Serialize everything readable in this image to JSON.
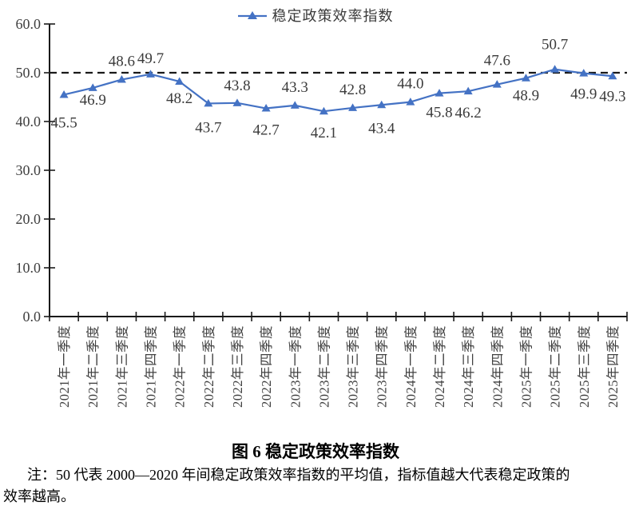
{
  "legend": {
    "label": "稳定政策效率指数"
  },
  "caption": "图 6 稳定政策效率指数",
  "note": {
    "line1": "注：50 代表 2000—2020 年间稳定政策效率指数的平均值，指标值越大代表稳定政策的",
    "line2": "效率越高。"
  },
  "chart_data": {
    "type": "line",
    "title": "",
    "xlabel": "",
    "ylabel": "",
    "series_name": "稳定政策效率指数",
    "categories": [
      "2021年一季度",
      "2021年二季度",
      "2021年三季度",
      "2021年四季度",
      "2022年一季度",
      "2022年二季度",
      "2022年三季度",
      "2022年四季度",
      "2023年一季度",
      "2023年二季度",
      "2023年三季度",
      "2023年四季度",
      "2024年一季度",
      "2024年二季度",
      "2024年三季度",
      "2024年四季度",
      "2025年一季度",
      "2025年二季度",
      "2025年三季度",
      "2025年四季度"
    ],
    "values": [
      45.5,
      46.9,
      48.6,
      49.7,
      48.2,
      43.7,
      43.8,
      42.7,
      43.3,
      42.1,
      42.8,
      43.4,
      44.0,
      45.8,
      46.2,
      47.6,
      48.9,
      50.7,
      49.9,
      49.3
    ],
    "yticks": [
      "0.0",
      "10.0",
      "20.0",
      "30.0",
      "40.0",
      "50.0",
      "60.0"
    ],
    "ylim": [
      0,
      60
    ],
    "reference_line": {
      "value": 50,
      "style": "dashed",
      "color": "#1a1a1a"
    },
    "marker": "triangle",
    "line_color": "#4472C4",
    "axis_color": "#1a1a1a",
    "grid": false,
    "legend_position": "top",
    "label_dy": [
      41,
      21,
      -17,
      -14,
      27,
      36,
      -16,
      33,
      -17,
      33,
      -17,
      35,
      -17,
      30,
      33,
      -24,
      28,
      -25,
      32,
      31
    ]
  }
}
